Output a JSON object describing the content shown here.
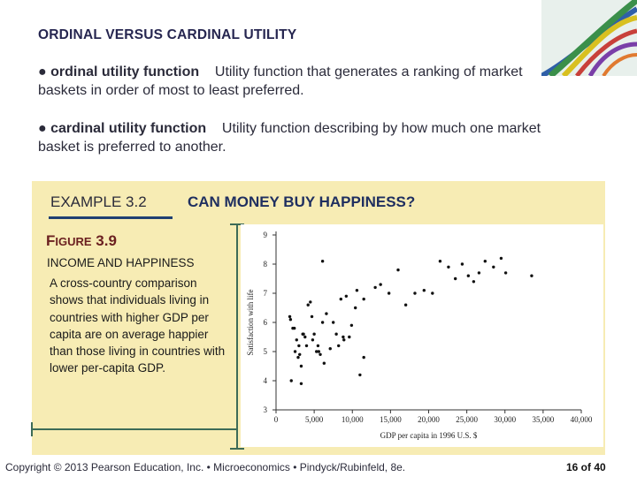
{
  "slide": {
    "title": "ORDINAL VERSUS CARDINAL UTILITY",
    "definitions": [
      {
        "bullet": "●",
        "term": "ordinal utility function",
        "text": "Utility function that generates a ranking of market baskets in order of most to least preferred."
      },
      {
        "bullet": "●",
        "term": "cardinal utility function",
        "text": "Utility function describing by how much one market basket is preferred to another."
      }
    ],
    "example": {
      "label": "EXAMPLE 3.2",
      "title": "CAN MONEY BUY HAPPINESS?"
    },
    "figure": {
      "label_first": "F",
      "label_rest": "IGURE",
      "label_number": "3.9",
      "title": "INCOME AND HAPPINESS",
      "description": "A cross-country comparison shows that individuals living in countries with higher GDP per capita are on average happier than those living in countries with lower per-capita GDP."
    },
    "footer": "Copyright © 2013  Pearson Education, Inc. • Microeconomics • Pindyck/Rubinfeld, 8e.",
    "page": "16 of 40"
  },
  "chart_data": {
    "type": "scatter",
    "xlabel": "GDP per capita in 1996 U.S. $",
    "ylabel": "Satisfaction with life",
    "xlim": [
      0,
      40000
    ],
    "ylim": [
      3,
      9
    ],
    "xticks": [
      0,
      5000,
      10000,
      15000,
      20000,
      25000,
      30000,
      35000,
      40000
    ],
    "xtick_labels": [
      "0",
      "5,000",
      "10,000",
      "15,000",
      "20,000",
      "25,000",
      "30,000",
      "35,000",
      "40,000"
    ],
    "yticks": [
      3,
      4,
      5,
      6,
      7,
      8,
      9
    ],
    "ytick_labels": [
      "3",
      "4",
      "5",
      "6",
      "7",
      "8",
      "9"
    ],
    "grid": false,
    "points": [
      [
        1800,
        6.2
      ],
      [
        1900,
        6.1
      ],
      [
        2200,
        5.8
      ],
      [
        2400,
        5.8
      ],
      [
        2500,
        5.0
      ],
      [
        2700,
        5.4
      ],
      [
        2900,
        4.8
      ],
      [
        3000,
        5.2
      ],
      [
        3100,
        4.9
      ],
      [
        3300,
        4.5
      ],
      [
        3500,
        5.6
      ],
      [
        3600,
        5.6
      ],
      [
        3800,
        5.5
      ],
      [
        4000,
        5.2
      ],
      [
        4200,
        6.6
      ],
      [
        4500,
        6.7
      ],
      [
        4700,
        6.2
      ],
      [
        4800,
        5.4
      ],
      [
        5000,
        5.6
      ],
      [
        5300,
        5.0
      ],
      [
        5500,
        5.2
      ],
      [
        5800,
        4.9
      ],
      [
        6100,
        6.0
      ],
      [
        6300,
        4.6
      ],
      [
        6600,
        6.3
      ],
      [
        7100,
        5.1
      ],
      [
        7500,
        6.0
      ],
      [
        7900,
        5.6
      ],
      [
        8200,
        5.2
      ],
      [
        8500,
        6.8
      ],
      [
        8800,
        5.5
      ],
      [
        9200,
        6.9
      ],
      [
        9600,
        5.5
      ],
      [
        9900,
        5.9
      ],
      [
        10400,
        6.5
      ],
      [
        11000,
        4.2
      ],
      [
        11500,
        4.8
      ],
      [
        2000,
        4.0
      ],
      [
        3300,
        3.9
      ],
      [
        5600,
        5.0
      ],
      [
        6100,
        8.1
      ],
      [
        8900,
        5.4
      ],
      [
        10600,
        7.1
      ],
      [
        11500,
        6.8
      ],
      [
        13000,
        7.2
      ],
      [
        13700,
        7.3
      ],
      [
        14800,
        7.0
      ],
      [
        16000,
        7.8
      ],
      [
        17000,
        6.6
      ],
      [
        18200,
        7.0
      ],
      [
        19400,
        7.1
      ],
      [
        20500,
        7.0
      ],
      [
        21500,
        8.1
      ],
      [
        22600,
        7.9
      ],
      [
        23500,
        7.5
      ],
      [
        24400,
        8.0
      ],
      [
        25200,
        7.6
      ],
      [
        25900,
        7.4
      ],
      [
        26600,
        7.7
      ],
      [
        27400,
        8.1
      ],
      [
        28500,
        7.9
      ],
      [
        29500,
        8.2
      ],
      [
        30100,
        7.7
      ],
      [
        33500,
        7.6
      ]
    ]
  },
  "colors": {
    "title": "#262650",
    "panel_bg": "#f7ecb4",
    "figure_label": "#6b2020",
    "accent_blue": "#1f3f72",
    "bracket": "#3d6b57"
  },
  "icons": {
    "decor": "ribbon-strands-decoration"
  }
}
